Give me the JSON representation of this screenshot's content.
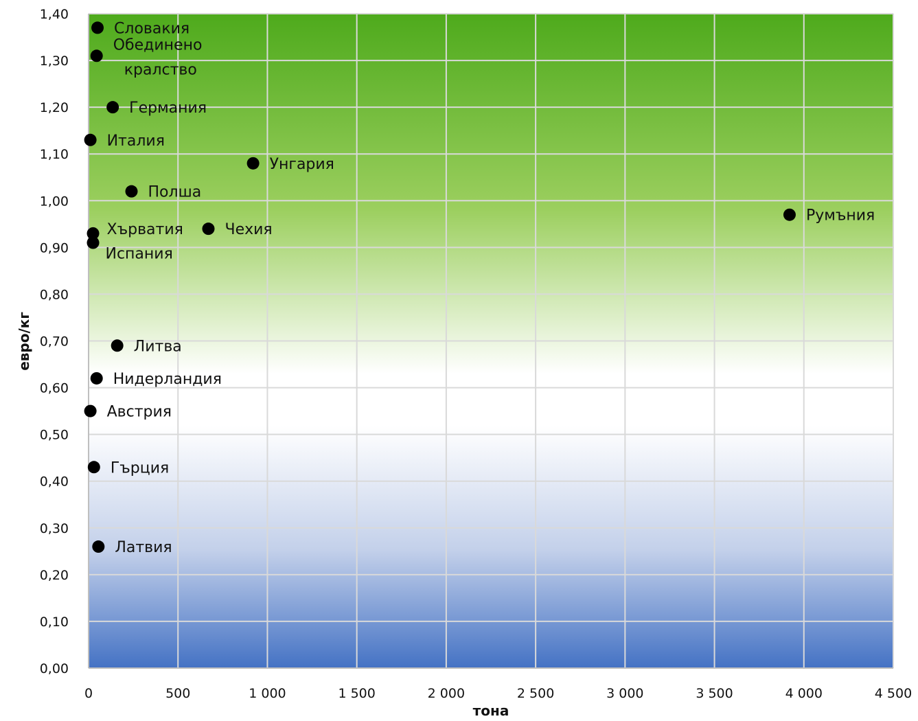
{
  "chart_data": {
    "type": "scatter",
    "xlabel": "тона",
    "ylabel": "евро/кг",
    "xlim": [
      0,
      4500
    ],
    "ylim": [
      0,
      1.4
    ],
    "x_ticks": [
      "0",
      "500",
      "1 000",
      "1 500",
      "2 000",
      "2 500",
      "3 000",
      "3 500",
      "4 000",
      "4 500"
    ],
    "y_ticks": [
      "0,00",
      "0,10",
      "0,20",
      "0,30",
      "0,40",
      "0,50",
      "0,60",
      "0,70",
      "0,80",
      "0,90",
      "1,00",
      "1,10",
      "1,20",
      "1,30",
      "1,40"
    ],
    "grid": true,
    "background": "vertical gradient: green (top) → white (middle) → blue (bottom)",
    "colors": {
      "top": "#4eaa1c",
      "middle": "#ffffff",
      "bottom": "#4472c4",
      "points": "#000000",
      "grid": "#d9d9d9"
    },
    "points": [
      {
        "label": "Словакия",
        "x": 50,
        "y": 1.37
      },
      {
        "label": "Обединено кралство",
        "label_lines": [
          "Обединено",
          "кралство"
        ],
        "x": 45,
        "y": 1.31
      },
      {
        "label": "Германия",
        "x": 135,
        "y": 1.2
      },
      {
        "label": "Италия",
        "x": 10,
        "y": 1.13
      },
      {
        "label": "Унгария",
        "x": 920,
        "y": 1.08
      },
      {
        "label": "Полша",
        "x": 240,
        "y": 1.02
      },
      {
        "label": "Румъния",
        "x": 3920,
        "y": 0.97
      },
      {
        "label": "Хърватия",
        "x": 25,
        "y": 0.93
      },
      {
        "label": "Чехия",
        "x": 670,
        "y": 0.94
      },
      {
        "label": "Испания",
        "x": 25,
        "y": 0.91
      },
      {
        "label": "Литва",
        "x": 160,
        "y": 0.69
      },
      {
        "label": "Нидерландия",
        "x": 45,
        "y": 0.62
      },
      {
        "label": "Австрия",
        "x": 10,
        "y": 0.55
      },
      {
        "label": "Гърция",
        "x": 30,
        "y": 0.43
      },
      {
        "label": "Латвия",
        "x": 55,
        "y": 0.26
      }
    ]
  }
}
